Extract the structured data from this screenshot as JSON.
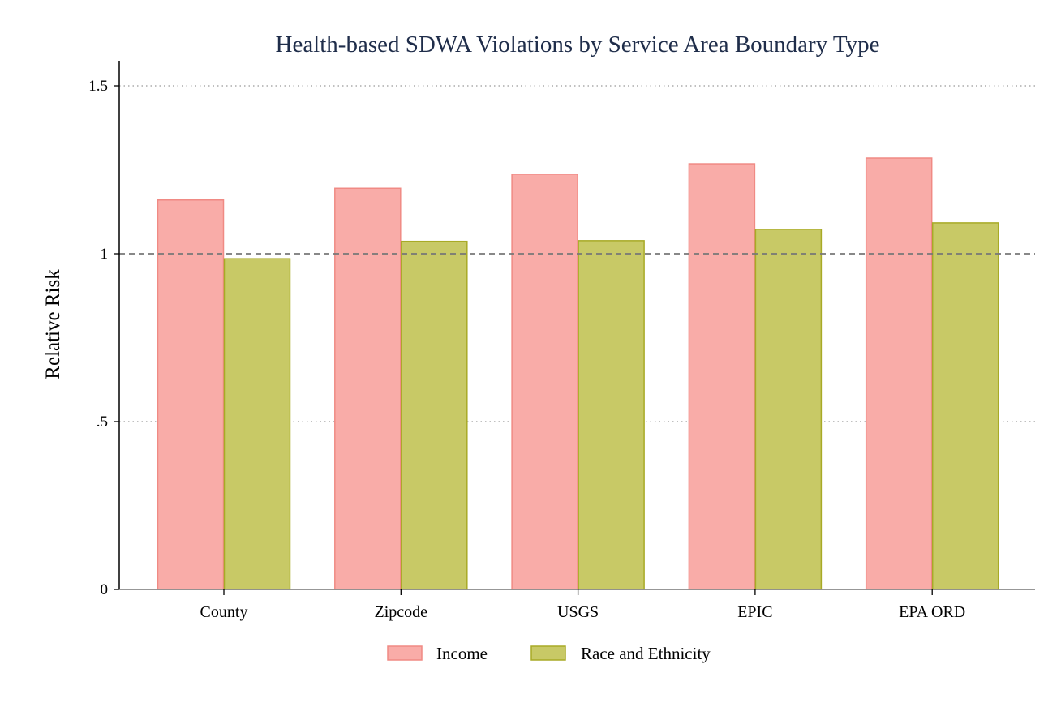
{
  "chart_data": {
    "type": "bar",
    "title": "Health-based SDWA Violations by Service Area Boundary Type",
    "xlabel": "",
    "ylabel": "Relative Risk",
    "categories": [
      "County",
      "Zipcode",
      "USGS",
      "EPIC",
      "EPA ORD"
    ],
    "series": [
      {
        "name": "Income",
        "values": [
          1.16,
          1.195,
          1.237,
          1.268,
          1.285
        ],
        "fill": "#f9aca8",
        "stroke": "#f08a84"
      },
      {
        "name": "Race and Ethnicity",
        "values": [
          0.985,
          1.037,
          1.039,
          1.073,
          1.092
        ],
        "fill": "#c8c966",
        "stroke": "#a8aa26"
      }
    ],
    "ylim": [
      0,
      1.5
    ],
    "yticks": [
      {
        "value": 0,
        "label": "0"
      },
      {
        "value": 0.5,
        "label": ".5"
      },
      {
        "value": 1,
        "label": "1"
      },
      {
        "value": 1.5,
        "label": "1.5"
      }
    ],
    "grid": "horizontal dotted",
    "reference_line": 1,
    "legend_position": "bottom"
  }
}
